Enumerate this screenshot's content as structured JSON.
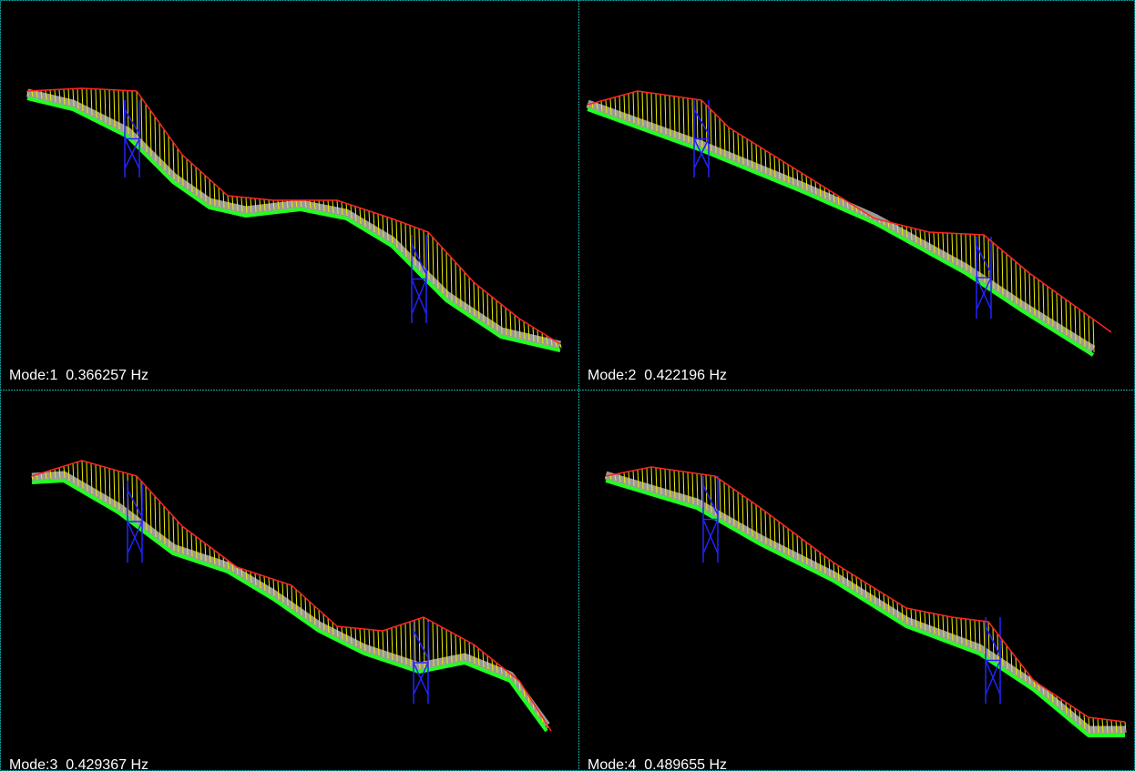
{
  "panels": [
    {
      "label": "Mode:1  0.366257 Hz"
    },
    {
      "label": "Mode:2  0.422196 Hz"
    },
    {
      "label": "Mode:3  0.429367 Hz"
    },
    {
      "label": "Mode:4  0.489655 Hz"
    }
  ]
}
